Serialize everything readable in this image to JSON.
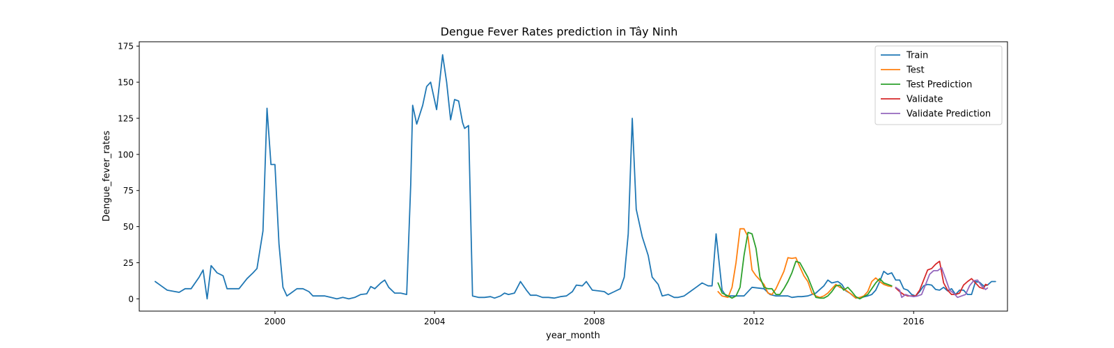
{
  "chart_data": {
    "type": "line",
    "title": "Dengue Fever Rates prediction in Tây Ninh",
    "xlabel": "year_month",
    "ylabel": "Dengue_fever_rates",
    "xlim": [
      1996.6,
      2018.35
    ],
    "ylim": [
      -8.5,
      178
    ],
    "x_ticks": [
      2000,
      2004,
      2008,
      2012,
      2016
    ],
    "y_ticks": [
      0,
      25,
      50,
      75,
      100,
      125,
      150,
      175
    ],
    "grid": false,
    "legend_position": "upper right",
    "series": [
      {
        "name": "Train",
        "color": "#1f77b4",
        "points": [
          [
            1997.0,
            12
          ],
          [
            1997.15,
            9
          ],
          [
            1997.3,
            6
          ],
          [
            1997.5,
            5
          ],
          [
            1997.6,
            4.5
          ],
          [
            1997.75,
            7
          ],
          [
            1997.9,
            7
          ],
          [
            1998.1,
            15
          ],
          [
            1998.2,
            20
          ],
          [
            1998.3,
            0
          ],
          [
            1998.4,
            23
          ],
          [
            1998.55,
            18
          ],
          [
            1998.7,
            16
          ],
          [
            1998.8,
            7
          ],
          [
            1998.9,
            7
          ],
          [
            1999.1,
            7
          ],
          [
            1999.3,
            14
          ],
          [
            1999.45,
            18
          ],
          [
            1999.55,
            21
          ],
          [
            1999.7,
            47
          ],
          [
            1999.8,
            132
          ],
          [
            1999.9,
            93
          ],
          [
            2000.0,
            93
          ],
          [
            2000.1,
            38
          ],
          [
            2000.2,
            8
          ],
          [
            2000.3,
            2
          ],
          [
            2000.4,
            4
          ],
          [
            2000.55,
            7
          ],
          [
            2000.7,
            7
          ],
          [
            2000.85,
            5
          ],
          [
            2000.95,
            2
          ],
          [
            2001.1,
            2
          ],
          [
            2001.25,
            2
          ],
          [
            2001.4,
            1
          ],
          [
            2001.55,
            0
          ],
          [
            2001.7,
            1
          ],
          [
            2001.85,
            0
          ],
          [
            2002.0,
            1
          ],
          [
            2002.15,
            3
          ],
          [
            2002.3,
            3.5
          ],
          [
            2002.4,
            8.5
          ],
          [
            2002.5,
            7
          ],
          [
            2002.65,
            11
          ],
          [
            2002.75,
            13
          ],
          [
            2002.85,
            8
          ],
          [
            2003.0,
            4
          ],
          [
            2003.15,
            4
          ],
          [
            2003.3,
            3
          ],
          [
            2003.4,
            79
          ],
          [
            2003.45,
            134
          ],
          [
            2003.55,
            121
          ],
          [
            2003.7,
            134
          ],
          [
            2003.8,
            147
          ],
          [
            2003.9,
            150
          ],
          [
            2004.05,
            131
          ],
          [
            2004.2,
            169
          ],
          [
            2004.3,
            150
          ],
          [
            2004.4,
            124
          ],
          [
            2004.5,
            138
          ],
          [
            2004.6,
            137
          ],
          [
            2004.7,
            122
          ],
          [
            2004.75,
            118
          ],
          [
            2004.85,
            120
          ],
          [
            2004.95,
            2
          ],
          [
            2005.1,
            1
          ],
          [
            2005.25,
            1
          ],
          [
            2005.4,
            1.5
          ],
          [
            2005.5,
            0.5
          ],
          [
            2005.65,
            2
          ],
          [
            2005.75,
            4
          ],
          [
            2005.85,
            3
          ],
          [
            2006.0,
            4
          ],
          [
            2006.15,
            12
          ],
          [
            2006.3,
            6
          ],
          [
            2006.4,
            2.5
          ],
          [
            2006.55,
            2.5
          ],
          [
            2006.7,
            1
          ],
          [
            2006.85,
            1
          ],
          [
            2007.0,
            0.5
          ],
          [
            2007.15,
            1.5
          ],
          [
            2007.3,
            2
          ],
          [
            2007.45,
            5
          ],
          [
            2007.55,
            9.5
          ],
          [
            2007.7,
            9
          ],
          [
            2007.8,
            12
          ],
          [
            2007.95,
            6
          ],
          [
            2008.1,
            5.5
          ],
          [
            2008.25,
            5
          ],
          [
            2008.35,
            3
          ],
          [
            2008.5,
            5
          ],
          [
            2008.65,
            7
          ],
          [
            2008.75,
            15
          ],
          [
            2008.85,
            45
          ],
          [
            2008.95,
            125
          ],
          [
            2009.05,
            62
          ],
          [
            2009.2,
            43
          ],
          [
            2009.35,
            30
          ],
          [
            2009.45,
            15
          ],
          [
            2009.6,
            10
          ],
          [
            2009.7,
            2
          ],
          [
            2009.85,
            3
          ],
          [
            2010.0,
            1
          ],
          [
            2010.1,
            1
          ],
          [
            2010.25,
            2
          ],
          [
            2010.4,
            5
          ],
          [
            2010.55,
            8
          ],
          [
            2010.7,
            11
          ],
          [
            2010.85,
            9
          ],
          [
            2010.95,
            9
          ],
          [
            2011.05,
            45
          ],
          [
            2011.2,
            6
          ],
          [
            2011.3,
            2
          ],
          [
            2011.45,
            2
          ],
          [
            2011.6,
            2
          ],
          [
            2011.75,
            2
          ],
          [
            2011.95,
            8
          ],
          [
            2012.1,
            7.5
          ],
          [
            2012.25,
            7
          ],
          [
            2012.4,
            3
          ],
          [
            2012.55,
            2
          ],
          [
            2012.7,
            2
          ],
          [
            2012.85,
            2
          ],
          [
            2012.95,
            1
          ],
          [
            2013.1,
            1.5
          ],
          [
            2013.2,
            1.5
          ],
          [
            2013.35,
            2
          ],
          [
            2013.55,
            4
          ],
          [
            2013.75,
            9
          ],
          [
            2013.85,
            13
          ],
          [
            2013.95,
            11
          ],
          [
            2014.1,
            12
          ],
          [
            2014.2,
            10
          ],
          [
            2014.3,
            5.5
          ],
          [
            2014.4,
            4
          ],
          [
            2014.55,
            0.5
          ],
          [
            2014.7,
            1
          ],
          [
            2014.85,
            2
          ],
          [
            2014.95,
            3
          ],
          [
            2015.05,
            6
          ],
          [
            2015.15,
            12
          ],
          [
            2015.25,
            19
          ],
          [
            2015.35,
            17
          ],
          [
            2015.45,
            18
          ],
          [
            2015.55,
            13
          ],
          [
            2015.65,
            13
          ],
          [
            2015.75,
            7
          ],
          [
            2015.85,
            6
          ],
          [
            2015.95,
            3
          ],
          [
            2016.05,
            2
          ],
          [
            2016.15,
            5
          ],
          [
            2016.25,
            9
          ],
          [
            2016.35,
            10
          ],
          [
            2016.45,
            9.5
          ],
          [
            2016.55,
            6.5
          ],
          [
            2016.65,
            6
          ],
          [
            2016.75,
            8
          ],
          [
            2016.85,
            5.5
          ],
          [
            2016.95,
            7
          ],
          [
            2017.05,
            3
          ],
          [
            2017.15,
            6
          ],
          [
            2017.25,
            6
          ],
          [
            2017.35,
            3
          ],
          [
            2017.45,
            3
          ],
          [
            2017.55,
            12
          ],
          [
            2017.65,
            11.5
          ],
          [
            2017.75,
            9
          ],
          [
            2017.85,
            9.5
          ],
          [
            2017.95,
            12
          ],
          [
            2018.05,
            12
          ]
        ]
      },
      {
        "name": "Test",
        "color": "#ff7f0e",
        "points": [
          [
            2011.1,
            5
          ],
          [
            2011.2,
            2
          ],
          [
            2011.35,
            1
          ],
          [
            2011.45,
            8
          ],
          [
            2011.55,
            25
          ],
          [
            2011.65,
            48.5
          ],
          [
            2011.75,
            48.5
          ],
          [
            2011.85,
            43
          ],
          [
            2011.95,
            20
          ],
          [
            2012.05,
            16
          ],
          [
            2012.15,
            13
          ],
          [
            2012.25,
            10
          ],
          [
            2012.35,
            4
          ],
          [
            2012.45,
            3
          ],
          [
            2012.55,
            7
          ],
          [
            2012.65,
            13
          ],
          [
            2012.75,
            19
          ],
          [
            2012.85,
            28.5
          ],
          [
            2012.95,
            28
          ],
          [
            2013.05,
            28.5
          ],
          [
            2013.15,
            22
          ],
          [
            2013.25,
            16
          ],
          [
            2013.35,
            12
          ],
          [
            2013.45,
            4
          ],
          [
            2013.55,
            2
          ],
          [
            2013.65,
            1
          ],
          [
            2013.75,
            2
          ],
          [
            2013.85,
            4
          ],
          [
            2013.95,
            7
          ],
          [
            2014.05,
            10
          ],
          [
            2014.15,
            8
          ],
          [
            2014.25,
            7
          ],
          [
            2014.35,
            5
          ],
          [
            2014.45,
            3
          ],
          [
            2014.55,
            0.5
          ],
          [
            2014.65,
            1
          ],
          [
            2014.75,
            2
          ],
          [
            2014.85,
            5
          ],
          [
            2014.95,
            12
          ],
          [
            2015.05,
            14.5
          ],
          [
            2015.15,
            12
          ],
          [
            2015.25,
            10
          ],
          [
            2015.35,
            9
          ],
          [
            2015.45,
            8.5
          ]
        ]
      },
      {
        "name": "Test Prediction",
        "color": "#2ca02c",
        "points": [
          [
            2011.1,
            11
          ],
          [
            2011.2,
            4
          ],
          [
            2011.35,
            2
          ],
          [
            2011.45,
            0.5
          ],
          [
            2011.55,
            2
          ],
          [
            2011.65,
            8
          ],
          [
            2011.75,
            30
          ],
          [
            2011.85,
            46
          ],
          [
            2011.95,
            45
          ],
          [
            2012.05,
            35
          ],
          [
            2012.15,
            15
          ],
          [
            2012.25,
            8
          ],
          [
            2012.35,
            7
          ],
          [
            2012.45,
            7
          ],
          [
            2012.55,
            3
          ],
          [
            2012.65,
            3
          ],
          [
            2012.75,
            7
          ],
          [
            2012.85,
            12
          ],
          [
            2012.95,
            18
          ],
          [
            2013.05,
            26
          ],
          [
            2013.15,
            25
          ],
          [
            2013.25,
            20
          ],
          [
            2013.35,
            15
          ],
          [
            2013.45,
            8
          ],
          [
            2013.55,
            1
          ],
          [
            2013.65,
            0.5
          ],
          [
            2013.75,
            0.5
          ],
          [
            2013.85,
            2
          ],
          [
            2013.95,
            5
          ],
          [
            2014.05,
            9
          ],
          [
            2014.15,
            9.5
          ],
          [
            2014.25,
            6
          ],
          [
            2014.35,
            8
          ],
          [
            2014.45,
            5
          ],
          [
            2014.55,
            1.5
          ],
          [
            2014.65,
            0
          ],
          [
            2014.75,
            1.5
          ],
          [
            2014.85,
            3
          ],
          [
            2014.95,
            7
          ],
          [
            2015.05,
            11
          ],
          [
            2015.15,
            14
          ],
          [
            2015.25,
            11
          ],
          [
            2015.35,
            10
          ],
          [
            2015.45,
            9
          ]
        ]
      },
      {
        "name": "Validate",
        "color": "#d62728",
        "points": [
          [
            2015.55,
            7.5
          ],
          [
            2015.65,
            5
          ],
          [
            2015.75,
            3
          ],
          [
            2015.85,
            2
          ],
          [
            2015.95,
            2
          ],
          [
            2016.05,
            2
          ],
          [
            2016.15,
            6
          ],
          [
            2016.25,
            13
          ],
          [
            2016.35,
            20
          ],
          [
            2016.45,
            21
          ],
          [
            2016.55,
            24
          ],
          [
            2016.65,
            26
          ],
          [
            2016.75,
            11
          ],
          [
            2016.85,
            6
          ],
          [
            2016.95,
            3
          ],
          [
            2017.05,
            3
          ],
          [
            2017.15,
            4
          ],
          [
            2017.25,
            9.5
          ],
          [
            2017.35,
            12
          ],
          [
            2017.45,
            14
          ],
          [
            2017.55,
            11
          ],
          [
            2017.65,
            8
          ],
          [
            2017.75,
            7
          ],
          [
            2017.8,
            10
          ],
          [
            2017.85,
            9.5
          ]
        ]
      },
      {
        "name": "Validate Prediction",
        "color": "#9467bd",
        "points": [
          [
            2015.55,
            8
          ],
          [
            2015.65,
            6
          ],
          [
            2015.7,
            1
          ],
          [
            2015.8,
            3
          ],
          [
            2015.9,
            2
          ],
          [
            2016.0,
            1.5
          ],
          [
            2016.1,
            2
          ],
          [
            2016.2,
            3
          ],
          [
            2016.3,
            10
          ],
          [
            2016.4,
            17
          ],
          [
            2016.5,
            19.5
          ],
          [
            2016.6,
            19.5
          ],
          [
            2016.7,
            21.5
          ],
          [
            2016.8,
            14
          ],
          [
            2016.9,
            6
          ],
          [
            2017.0,
            4
          ],
          [
            2017.1,
            1
          ],
          [
            2017.2,
            2
          ],
          [
            2017.3,
            3
          ],
          [
            2017.4,
            9
          ],
          [
            2017.5,
            12.5
          ],
          [
            2017.6,
            13
          ],
          [
            2017.7,
            9
          ],
          [
            2017.8,
            6.5
          ],
          [
            2017.85,
            7.5
          ]
        ]
      }
    ]
  }
}
